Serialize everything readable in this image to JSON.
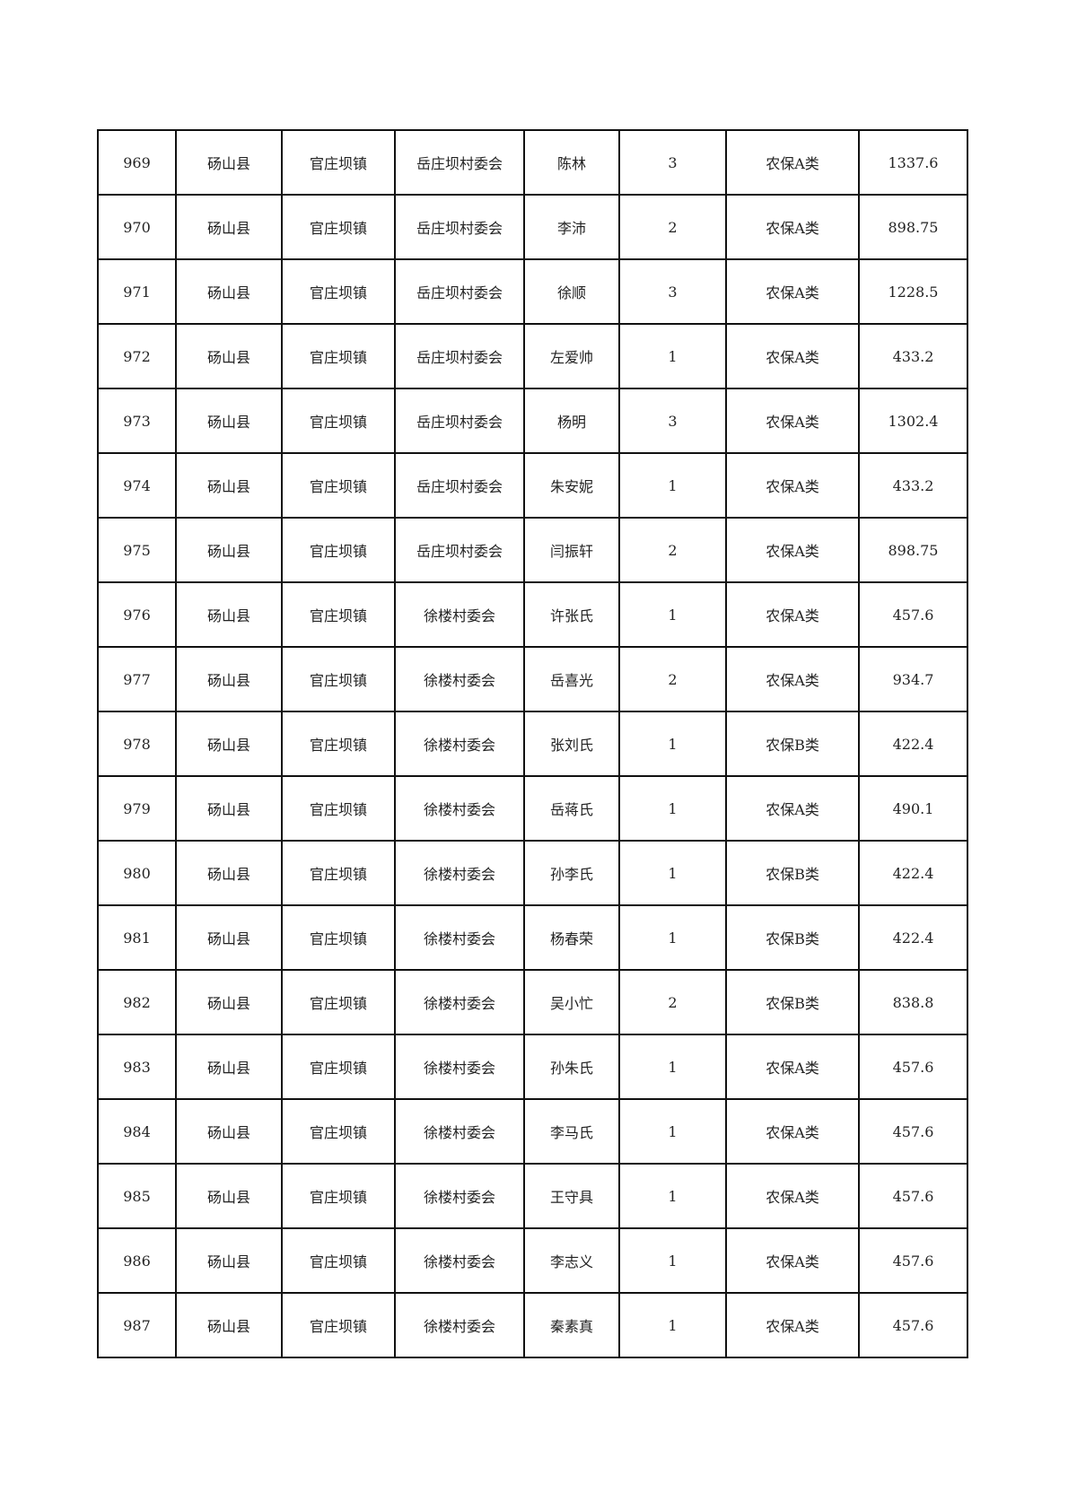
{
  "rows": [
    [
      "969",
      "砀山县",
      "官庄坝镇",
      "岳庄坝村委会",
      "陈林",
      "3",
      "农保A类",
      "1337.6"
    ],
    [
      "970",
      "砀山县",
      "官庄坝镇",
      "岳庄坝村委会",
      "李沛",
      "2",
      "农保A类",
      "898.75"
    ],
    [
      "971",
      "砀山县",
      "官庄坝镇",
      "岳庄坝村委会",
      "徐顺",
      "3",
      "农保A类",
      "1228.5"
    ],
    [
      "972",
      "砀山县",
      "官庄坝镇",
      "岳庄坝村委会",
      "左爱帅",
      "1",
      "农保A类",
      "433.2"
    ],
    [
      "973",
      "砀山县",
      "官庄坝镇",
      "岳庄坝村委会",
      "杨明",
      "3",
      "农保A类",
      "1302.4"
    ],
    [
      "974",
      "砀山县",
      "官庄坝镇",
      "岳庄坝村委会",
      "朱安妮",
      "1",
      "农保A类",
      "433.2"
    ],
    [
      "975",
      "砀山县",
      "官庄坝镇",
      "岳庄坝村委会",
      "闫振轩",
      "2",
      "农保A类",
      "898.75"
    ],
    [
      "976",
      "砀山县",
      "官庄坝镇",
      "徐楼村委会",
      "许张氏",
      "1",
      "农保A类",
      "457.6"
    ],
    [
      "977",
      "砀山县",
      "官庄坝镇",
      "徐楼村委会",
      "岳喜光",
      "2",
      "农保A类",
      "934.7"
    ],
    [
      "978",
      "砀山县",
      "官庄坝镇",
      "徐楼村委会",
      "张刘氏",
      "1",
      "农保B类",
      "422.4"
    ],
    [
      "979",
      "砀山县",
      "官庄坝镇",
      "徐楼村委会",
      "岳蒋氏",
      "1",
      "农保A类",
      "490.1"
    ],
    [
      "980",
      "砀山县",
      "官庄坝镇",
      "徐楼村委会",
      "孙李氏",
      "1",
      "农保B类",
      "422.4"
    ],
    [
      "981",
      "砀山县",
      "官庄坝镇",
      "徐楼村委会",
      "杨春荣",
      "1",
      "农保B类",
      "422.4"
    ],
    [
      "982",
      "砀山县",
      "官庄坝镇",
      "徐楼村委会",
      "吴小忙",
      "2",
      "农保B类",
      "838.8"
    ],
    [
      "983",
      "砀山县",
      "官庄坝镇",
      "徐楼村委会",
      "孙朱氏",
      "1",
      "农保A类",
      "457.6"
    ],
    [
      "984",
      "砀山县",
      "官庄坝镇",
      "徐楼村委会",
      "李马氏",
      "1",
      "农保A类",
      "457.6"
    ],
    [
      "985",
      "砀山县",
      "官庄坝镇",
      "徐楼村委会",
      "王守具",
      "1",
      "农保A类",
      "457.6"
    ],
    [
      "986",
      "砀山县",
      "官庄坝镇",
      "徐楼村委会",
      "李志义",
      "1",
      "农保A类",
      "457.6"
    ],
    [
      "987",
      "砀山县",
      "官庄坝镇",
      "徐楼村委会",
      "秦素真",
      "1",
      "农保A类",
      "457.6"
    ]
  ]
}
